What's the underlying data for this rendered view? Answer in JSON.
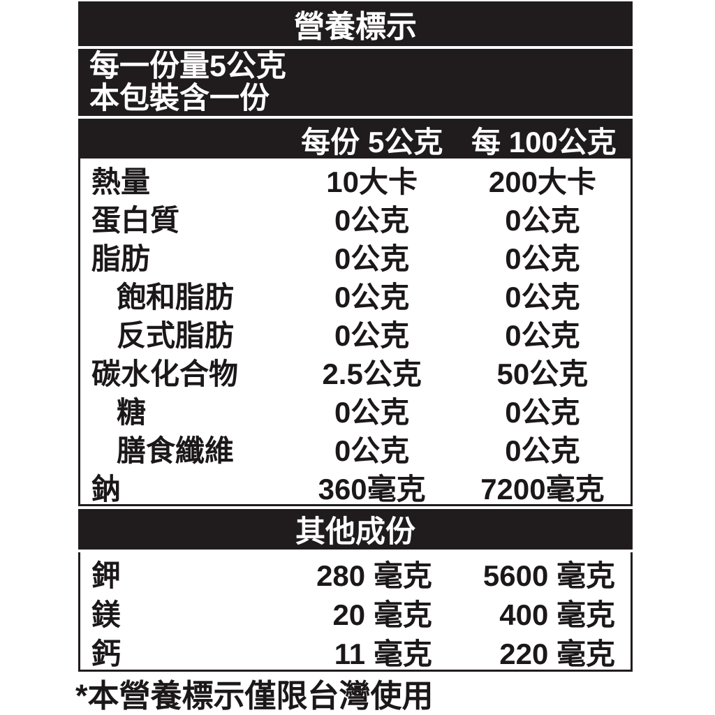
{
  "title": "營養標示",
  "serving_info": {
    "line1": "每一份量5公克",
    "line2": "本包裝含一份"
  },
  "columns": {
    "per_serving": "每份 5公克",
    "per_100g": "每 100公克"
  },
  "nutrients": [
    {
      "label": "熱量",
      "indent": false,
      "per_serving": "10大卡",
      "per_100g": "200大卡"
    },
    {
      "label": "蛋白質",
      "indent": false,
      "per_serving": "0公克",
      "per_100g": "0公克"
    },
    {
      "label": "脂肪",
      "indent": false,
      "per_serving": "0公克",
      "per_100g": "0公克"
    },
    {
      "label": "飽和脂肪",
      "indent": true,
      "per_serving": "0公克",
      "per_100g": "0公克"
    },
    {
      "label": "反式脂肪",
      "indent": true,
      "per_serving": "0公克",
      "per_100g": "0公克"
    },
    {
      "label": "碳水化合物",
      "indent": false,
      "per_serving": "2.5公克",
      "per_100g": "50公克"
    },
    {
      "label": "糖",
      "indent": true,
      "per_serving": "0公克",
      "per_100g": "0公克"
    },
    {
      "label": "膳食纖維",
      "indent": true,
      "per_serving": "0公克",
      "per_100g": "0公克"
    },
    {
      "label": "鈉",
      "indent": false,
      "per_serving": "360毫克",
      "per_100g": "7200毫克"
    }
  ],
  "other_section": {
    "title": "其他成份",
    "rows": [
      {
        "label": "鉀",
        "per_serving": "280 毫克",
        "per_100g": "5600 毫克"
      },
      {
        "label": "鎂",
        "per_serving": "20 毫克",
        "per_100g": "400 毫克"
      },
      {
        "label": "鈣",
        "per_serving": "11 毫克",
        "per_100g": "220 毫克"
      }
    ]
  },
  "footnote": "*本營養標示僅限台灣使用",
  "colors": {
    "bar_background": "#201c1d",
    "bar_text": "#ffffff",
    "body_text": "#1c1819",
    "border": "#201c1d",
    "page_background": "#ffffff"
  }
}
